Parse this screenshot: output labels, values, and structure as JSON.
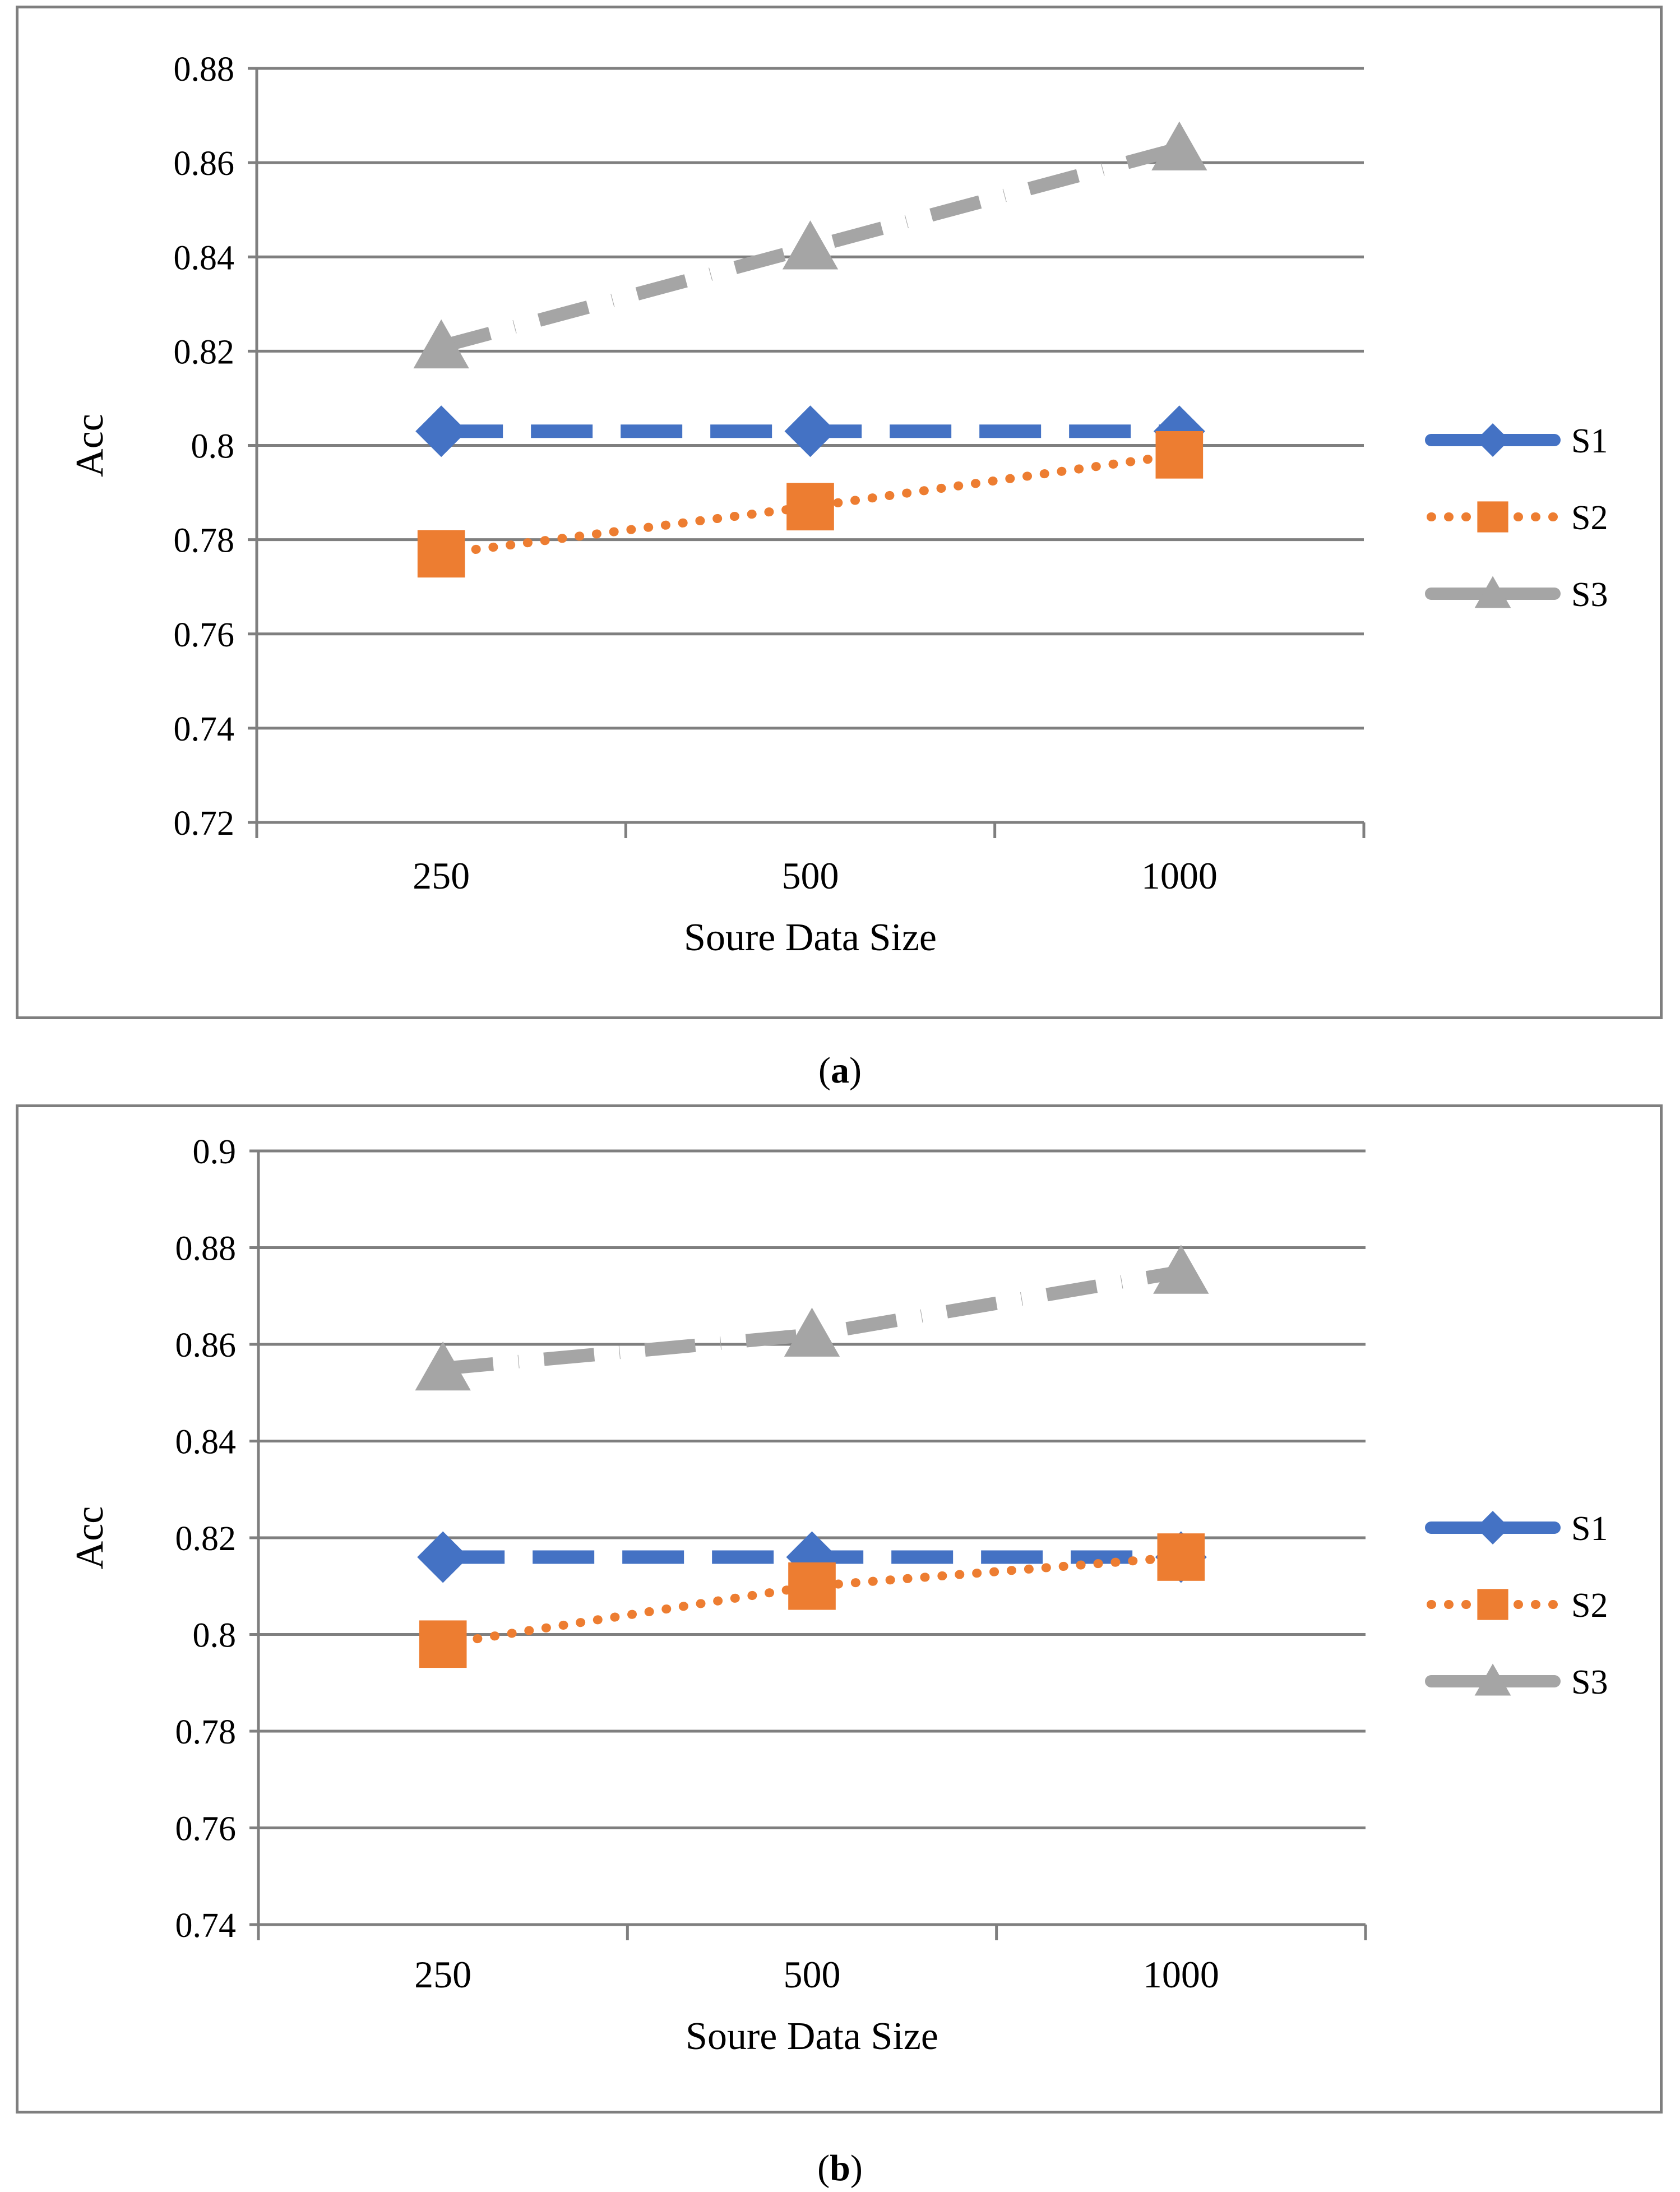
{
  "colors": {
    "S1": "#4472c4",
    "S2": "#ed7d31",
    "S3": "#a5a5a5",
    "grid": "#7f7f7f"
  },
  "chart_data": [
    {
      "id": "a",
      "type": "line",
      "caption": {
        "open": "(",
        "letter": "a",
        "close": ")"
      },
      "categories": [
        "250",
        "500",
        "1000"
      ],
      "xlabel": "Soure Data Size",
      "ylabel": "Acc",
      "ylim": [
        0.72,
        0.88
      ],
      "ystep": 0.02,
      "yticks": [
        "0.72",
        "0.74",
        "0.76",
        "0.78",
        "0.8",
        "0.82",
        "0.84",
        "0.86",
        "0.88"
      ],
      "legend_position": "right",
      "series": [
        {
          "name": "S1",
          "values": [
            0.803,
            0.803,
            0.803
          ],
          "marker": "diamond",
          "line": "long-dash"
        },
        {
          "name": "S2",
          "values": [
            0.777,
            0.787,
            0.798
          ],
          "marker": "square",
          "line": "dotted"
        },
        {
          "name": "S3",
          "values": [
            0.821,
            0.842,
            0.863
          ],
          "marker": "triangle",
          "line": "dash-dot"
        }
      ]
    },
    {
      "id": "b",
      "type": "line",
      "caption": {
        "open": "(",
        "letter": "b",
        "close": ")"
      },
      "categories": [
        "250",
        "500",
        "1000"
      ],
      "xlabel": "Soure Data Size",
      "ylabel": "Acc",
      "ylim": [
        0.74,
        0.9
      ],
      "ystep": 0.02,
      "yticks": [
        "0.74",
        "0.76",
        "0.78",
        "0.8",
        "0.82",
        "0.84",
        "0.86",
        "0.88",
        "0.9"
      ],
      "legend_position": "right",
      "series": [
        {
          "name": "S1",
          "values": [
            0.816,
            0.816,
            0.816
          ],
          "marker": "diamond",
          "line": "long-dash"
        },
        {
          "name": "S2",
          "values": [
            0.798,
            0.81,
            0.816
          ],
          "marker": "square",
          "line": "dotted"
        },
        {
          "name": "S3",
          "values": [
            0.855,
            0.862,
            0.875
          ],
          "marker": "triangle",
          "line": "dash-dot"
        }
      ]
    }
  ]
}
